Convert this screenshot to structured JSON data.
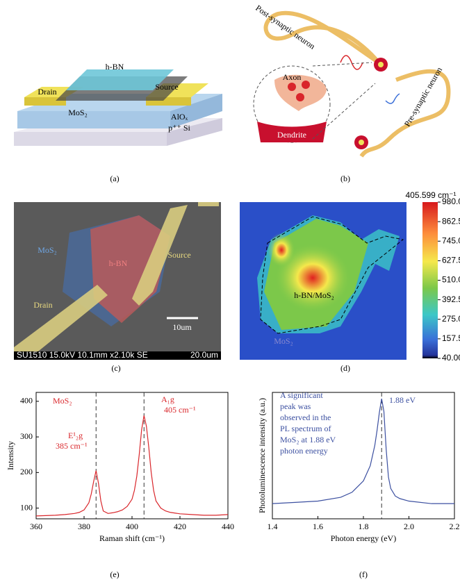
{
  "panels": {
    "a": {
      "label": "(a)",
      "hbn": "h-BN",
      "drain": "Drain",
      "source": "Source",
      "mos2": "MoS₂",
      "alox": "AlOₓ",
      "si": "p⁺⁺ Si"
    },
    "b": {
      "label": "(b)",
      "post": "Post-synaptic neuron",
      "pre": "Pre-synaptic neuron",
      "axon": "Axon",
      "dendrite": "Dendrite"
    },
    "c": {
      "label": "(c)",
      "mos2": "MoS₂",
      "hbn": "h-BN",
      "source": "Source",
      "drain": "Drain",
      "scale": "10um",
      "info": "SU1510 15.0kV 10.1mm x2.10k SE",
      "info_scale": "20.0um"
    },
    "d": {
      "label": "(d)",
      "region": "h-BN/MoS₂",
      "mos2": "MoS₂",
      "colorbar": {
        "title": "405.599 cm⁻¹",
        "lim": [
          40,
          980
        ],
        "ticks": [
          {
            "value": 980,
            "label": "980.0"
          },
          862.5,
          {
            "value": 745,
            "label": "745.0"
          },
          627.5,
          {
            "value": 510,
            "label": "510.0"
          },
          392.5,
          {
            "value": 275,
            "label": "275.0"
          },
          157.5,
          {
            "value": 40,
            "label": "40.00"
          }
        ]
      }
    }
  },
  "chart_data": [
    {
      "type": "line",
      "panel_label": "(e)",
      "x_label": "Raman shift (cm⁻¹)",
      "y_label": "Intensity",
      "x": [
        360,
        364,
        368,
        372,
        376,
        378,
        380,
        382,
        383,
        384,
        385,
        386,
        387,
        388,
        390,
        392,
        394,
        396,
        398,
        400,
        401,
        402,
        403,
        404,
        405,
        406,
        407,
        408,
        409,
        410,
        412,
        414,
        416,
        420,
        425,
        430,
        435,
        440
      ],
      "series": [
        {
          "color": "#d9262b",
          "values": [
            78,
            79,
            80,
            82,
            85,
            88,
            95,
            115,
            140,
            175,
            205,
            170,
            120,
            92,
            85,
            87,
            90,
            95,
            105,
            125,
            150,
            190,
            250,
            320,
            360,
            330,
            270,
            200,
            150,
            120,
            100,
            92,
            88,
            84,
            82,
            80,
            80,
            82
          ]
        }
      ],
      "xlim": [
        360,
        440
      ],
      "xticks": [
        360,
        380,
        400,
        420,
        440
      ],
      "ylim": [
        70,
        425
      ],
      "yticks": [
        100,
        200,
        300,
        400
      ],
      "vlines": [
        385,
        405
      ],
      "annotations": [
        "MoS₂",
        "E¹₂g",
        "385 cm⁻¹",
        "A₁g",
        "405 cm⁻¹"
      ]
    },
    {
      "type": "line",
      "panel_label": "(f)",
      "x_label": "Photon energy (eV)",
      "y_label": "Photoluminescence intensity (a.u.)",
      "x": [
        1.4,
        1.5,
        1.6,
        1.7,
        1.75,
        1.8,
        1.83,
        1.85,
        1.86,
        1.87,
        1.88,
        1.89,
        1.9,
        1.91,
        1.92,
        1.94,
        1.96,
        2.0,
        2.1,
        2.2
      ],
      "series": [
        {
          "color": "#3b4fa0",
          "values": [
            0.12,
            0.13,
            0.14,
            0.17,
            0.21,
            0.3,
            0.42,
            0.58,
            0.7,
            0.84,
            0.95,
            0.85,
            0.55,
            0.33,
            0.24,
            0.18,
            0.16,
            0.14,
            0.12,
            0.12
          ]
        }
      ],
      "xlim": [
        1.4,
        2.2
      ],
      "xticks": [
        1.4,
        1.6,
        1.8,
        {
          "value": 2,
          "label": "2.0"
        },
        2.2
      ],
      "ylim": [
        0,
        1
      ],
      "vlines": [
        1.88
      ],
      "annotations": [
        "A significant",
        "peak was",
        "observed in the",
        "PL spectrum of",
        "MoS₂ at 1.88 eV",
        "photon energy",
        "1.88 eV"
      ]
    }
  ]
}
